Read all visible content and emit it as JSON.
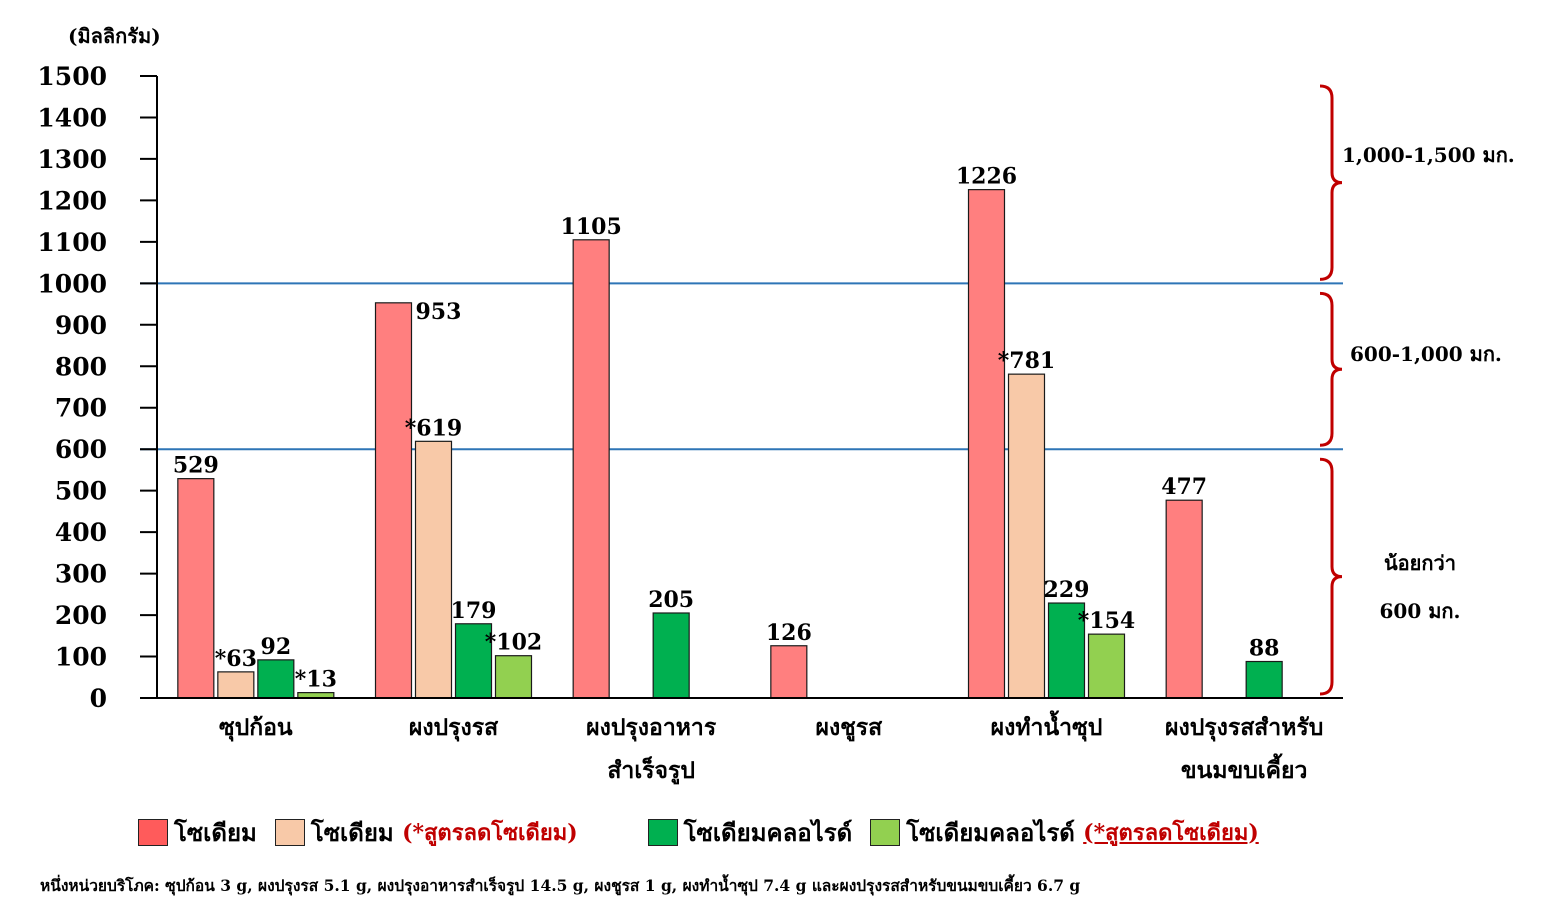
{
  "chart_data": {
    "type": "bar",
    "y_unit_label": "(มิลลิกรัม)",
    "ylim": [
      0,
      1500
    ],
    "yticks": [
      0,
      100,
      200,
      300,
      400,
      500,
      600,
      700,
      800,
      900,
      1000,
      1100,
      1200,
      1300,
      1400,
      1500
    ],
    "reference_lines": [
      600,
      1000
    ],
    "categories": [
      [
        "ซุปก้อน"
      ],
      [
        "ผงปรุงรส"
      ],
      [
        "ผงปรุงอาหาร",
        "สำเร็จรูป"
      ],
      [
        "ผงชูรส"
      ],
      [
        "ผงทำน้ำซุป"
      ],
      [
        "ผงปรุงรสสำหรับ",
        "ขนมขบเคี้ยว"
      ]
    ],
    "series": [
      {
        "name": "โซเดียม",
        "color": "#ff7f7f",
        "values": [
          529,
          953,
          1105,
          126,
          1226,
          477
        ],
        "labels": [
          "529",
          "953",
          "1105",
          "126",
          "1226",
          "477"
        ]
      },
      {
        "name": "โซเดียม (*สูตรลดโซเดียม)",
        "color": "#f8c9a8",
        "values": [
          63,
          619,
          null,
          null,
          781,
          null
        ],
        "labels": [
          "*63",
          "*619",
          null,
          null,
          "*781",
          null
        ]
      },
      {
        "name": "โซเดียมคลอไรด์",
        "color": "#00b050",
        "values": [
          92,
          179,
          205,
          null,
          229,
          88
        ],
        "labels": [
          "92",
          "179",
          "205",
          null,
          "229",
          "88"
        ]
      },
      {
        "name": "โซเดียมคลอไรด์ (*สูตรลดโซเดียม)",
        "color": "#92d050",
        "values": [
          13,
          102,
          null,
          null,
          154,
          null
        ],
        "labels": [
          "*13",
          "*102",
          null,
          null,
          "*154",
          null
        ]
      }
    ],
    "ranges": [
      {
        "from": 1000,
        "to": 1500,
        "label": [
          "1,000-1,500 มก."
        ]
      },
      {
        "from": 600,
        "to": 1000,
        "label": [
          "600-1,000 มก."
        ]
      },
      {
        "from": 0,
        "to": 600,
        "label": [
          "น้อยกว่า",
          "600 มก."
        ]
      }
    ],
    "colors": {
      "bracket": "#c00000",
      "reference_line": "#2e75b6",
      "note": "#c00000"
    }
  },
  "legend": {
    "items": [
      {
        "label": "โซเดียม",
        "note": ""
      },
      {
        "label": "โซเดียม",
        "note": "(*สูตรลดโซเดียม)"
      },
      {
        "label": "โซเดียมคลอไรด์",
        "note": ""
      },
      {
        "label": "โซเดียมคลอไรด์",
        "note": "(*สูตรลดโซเดียม)"
      }
    ]
  },
  "footnote": "หนึ่งหน่วยบริโภค: ซุปก้อน 3 g, ผงปรุงรส 5.1 g, ผงปรุงอาหารสำเร็จรูป 14.5 g, ผงชูรส 1 g, ผงทำน้ำซุป 7.4 g และผงปรุงรสสำหรับขนมขบเคี้ยว 6.7 g"
}
